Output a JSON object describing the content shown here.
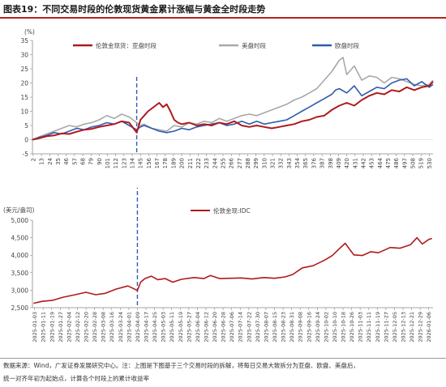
{
  "figure": {
    "title": "图表19：不同交易时段的伦敦现货黄金累计涨幅与黄金全时段走势",
    "source_note": "数据来源：Wind，广发证券发展研究中心。注：上图是下图基于三个交易时段的拆解，将每日交易大致拆分为亚盘、欧盘、美盘后，",
    "source_note_2": "统一对齐年初为起始点，计算各个时段上的累计收益率"
  },
  "colors": {
    "asia": "#b0191c",
    "us": "#a8a8a8",
    "europe": "#2f5cae",
    "gold": "#b0191c",
    "marker": "#2f5cae",
    "title_rule": "#b22222"
  },
  "chart_data": [
    {
      "type": "line",
      "ylabel": "(%)",
      "ylim": [
        -5,
        35
      ],
      "yticks": [
        -5,
        0,
        5,
        10,
        15,
        20,
        25,
        30,
        35
      ],
      "xlim": [
        1,
        535
      ],
      "xticks": [
        2,
        13,
        24,
        35,
        46,
        57,
        68,
        79,
        90,
        101,
        112,
        123,
        134,
        145,
        156,
        167,
        178,
        189,
        200,
        211,
        222,
        233,
        244,
        255,
        266,
        277,
        288,
        299,
        310,
        321,
        332,
        343,
        354,
        365,
        376,
        387,
        398,
        409,
        420,
        431,
        442,
        453,
        464,
        475,
        486,
        497,
        508,
        519,
        530
      ],
      "marker_x": 140,
      "legend_position": "top",
      "series": [
        {
          "name": "伦敦金现货：亚盘时段",
          "key": "asia",
          "x": [
            1,
            10,
            20,
            30,
            40,
            50,
            60,
            70,
            80,
            90,
            100,
            110,
            120,
            130,
            140,
            145,
            150,
            155,
            160,
            165,
            170,
            175,
            180,
            185,
            190,
            195,
            200,
            210,
            220,
            230,
            240,
            250,
            260,
            270,
            280,
            290,
            300,
            310,
            320,
            330,
            340,
            350,
            360,
            370,
            380,
            390,
            400,
            410,
            420,
            430,
            440,
            450,
            460,
            470,
            480,
            490,
            500,
            510,
            520,
            530,
            535
          ],
          "y": [
            0,
            0.5,
            1.2,
            1.5,
            2.2,
            2.0,
            2.8,
            3.5,
            3.8,
            4.5,
            5.0,
            5.5,
            6.5,
            6.0,
            2.5,
            7.0,
            8.5,
            10.0,
            11.0,
            12.0,
            13.0,
            11.5,
            12.5,
            10.0,
            7.0,
            6.0,
            5.5,
            6.0,
            5.0,
            5.5,
            5.0,
            6.0,
            5.5,
            6.5,
            5.0,
            4.5,
            5.0,
            4.5,
            4.0,
            4.5,
            5.0,
            5.5,
            6.5,
            7.0,
            8.0,
            8.5,
            10.5,
            12.0,
            13.0,
            12.0,
            14.0,
            15.5,
            16.5,
            16.0,
            17.5,
            17.0,
            18.5,
            17.5,
            18.5,
            19.0,
            20.5
          ]
        },
        {
          "name": "美盘时段",
          "key": "us",
          "x": [
            1,
            10,
            20,
            30,
            40,
            50,
            60,
            70,
            80,
            90,
            100,
            110,
            120,
            130,
            140,
            145,
            150,
            160,
            170,
            180,
            190,
            200,
            210,
            220,
            230,
            240,
            250,
            260,
            270,
            280,
            290,
            300,
            310,
            320,
            330,
            340,
            350,
            360,
            370,
            380,
            390,
            400,
            410,
            415,
            420,
            430,
            440,
            450,
            460,
            470,
            480,
            490,
            500,
            510,
            520,
            530,
            535
          ],
          "y": [
            0,
            1.0,
            2.0,
            3.0,
            4.0,
            5.0,
            4.5,
            5.5,
            6.0,
            7.0,
            8.5,
            7.5,
            9.0,
            8.0,
            6.0,
            5.0,
            5.5,
            4.0,
            3.5,
            3.0,
            5.0,
            4.5,
            6.0,
            5.5,
            6.5,
            6.0,
            7.5,
            6.5,
            7.5,
            8.5,
            9.0,
            8.5,
            9.5,
            10.5,
            11.5,
            12.5,
            14.0,
            15.0,
            16.5,
            18.0,
            21.0,
            24.0,
            28.0,
            29.0,
            23.0,
            26.0,
            21.0,
            22.5,
            22.0,
            20.0,
            22.0,
            21.5,
            20.5,
            19.5,
            19.0,
            19.5,
            21.0
          ]
        },
        {
          "name": "欧盘时段",
          "key": "europe",
          "x": [
            1,
            10,
            20,
            30,
            40,
            50,
            60,
            70,
            80,
            90,
            100,
            110,
            120,
            130,
            140,
            145,
            150,
            160,
            170,
            180,
            190,
            200,
            210,
            220,
            230,
            240,
            250,
            260,
            270,
            280,
            290,
            300,
            310,
            320,
            330,
            340,
            350,
            360,
            370,
            380,
            390,
            400,
            405,
            410,
            420,
            430,
            440,
            450,
            460,
            470,
            480,
            490,
            500,
            510,
            520,
            530,
            535
          ],
          "y": [
            0,
            0.8,
            1.5,
            2.5,
            2.0,
            3.0,
            4.0,
            3.5,
            4.5,
            5.0,
            6.0,
            5.5,
            6.5,
            5.0,
            3.5,
            4.5,
            5.0,
            4.0,
            3.0,
            2.5,
            3.0,
            4.0,
            3.5,
            4.5,
            5.0,
            5.5,
            6.0,
            5.0,
            5.5,
            6.5,
            5.5,
            6.5,
            5.5,
            6.0,
            6.5,
            7.0,
            8.5,
            10.0,
            11.5,
            13.0,
            14.5,
            16.0,
            17.5,
            18.0,
            16.5,
            19.0,
            15.5,
            17.0,
            18.5,
            18.0,
            20.0,
            21.0,
            21.5,
            19.0,
            20.5,
            18.5,
            19.5
          ]
        }
      ]
    },
    {
      "type": "line",
      "ylabel": "(美元/盎司)",
      "ylim": [
        2500,
        5000
      ],
      "yticks": [
        2500,
        3000,
        3500,
        4000,
        4500,
        5000
      ],
      "xlim": [
        "2025-01-01",
        "2026-01-10"
      ],
      "xticks": [
        "2025-01-03",
        "2025-01-11",
        "2025-01-19",
        "2025-01-27",
        "2025-02-04",
        "2025-02-12",
        "2025-02-20",
        "2025-02-28",
        "2025-03-08",
        "2025-03-16",
        "2025-03-24",
        "2025-04-01",
        "2025-04-09",
        "2025-04-17",
        "2025-04-25",
        "2025-05-03",
        "2025-05-11",
        "2025-05-19",
        "2025-05-27",
        "2025-06-04",
        "2025-06-12",
        "2025-06-20",
        "2025-06-28",
        "2025-07-06",
        "2025-07-14",
        "2025-07-22",
        "2025-07-30",
        "2025-08-07",
        "2025-08-15",
        "2025-08-23",
        "2025-08-31",
        "2025-09-08",
        "2025-09-16",
        "2025-09-24",
        "2025-10-02",
        "2025-10-10",
        "2025-10-18",
        "2025-10-26",
        "2025-11-03",
        "2025-11-11",
        "2025-11-19",
        "2025-11-27",
        "2025-12-05",
        "2025-12-13",
        "2025-12-21",
        "2025-12-29",
        "2026-01-06"
      ],
      "marker_x": "2025-04-09",
      "legend_position": "top",
      "series": [
        {
          "name": "伦敦金现:IDC",
          "key": "gold",
          "x": [
            "2025-01-02",
            "2025-01-10",
            "2025-01-20",
            "2025-01-30",
            "2025-02-10",
            "2025-02-20",
            "2025-03-01",
            "2025-03-10",
            "2025-03-20",
            "2025-03-31",
            "2025-04-05",
            "2025-04-09",
            "2025-04-12",
            "2025-04-16",
            "2025-04-22",
            "2025-04-28",
            "2025-05-05",
            "2025-05-12",
            "2025-05-20",
            "2025-06-01",
            "2025-06-10",
            "2025-06-16",
            "2025-06-25",
            "2025-07-05",
            "2025-07-15",
            "2025-07-25",
            "2025-08-05",
            "2025-08-15",
            "2025-08-25",
            "2025-09-01",
            "2025-09-10",
            "2025-09-20",
            "2025-10-01",
            "2025-10-08",
            "2025-10-15",
            "2025-10-20",
            "2025-10-28",
            "2025-11-05",
            "2025-11-13",
            "2025-11-20",
            "2025-12-01",
            "2025-12-10",
            "2025-12-20",
            "2025-12-26",
            "2025-12-31",
            "2026-01-06",
            "2026-01-09"
          ],
          "y": [
            2625,
            2680,
            2710,
            2800,
            2870,
            2940,
            2870,
            2910,
            3030,
            3120,
            3050,
            2990,
            3230,
            3330,
            3400,
            3300,
            3330,
            3230,
            3310,
            3360,
            3330,
            3420,
            3330,
            3340,
            3350,
            3320,
            3360,
            3340,
            3380,
            3450,
            3640,
            3700,
            3860,
            3990,
            4200,
            4340,
            4010,
            3990,
            4100,
            4070,
            4220,
            4200,
            4300,
            4500,
            4320,
            4450,
            4480
          ]
        }
      ]
    }
  ]
}
